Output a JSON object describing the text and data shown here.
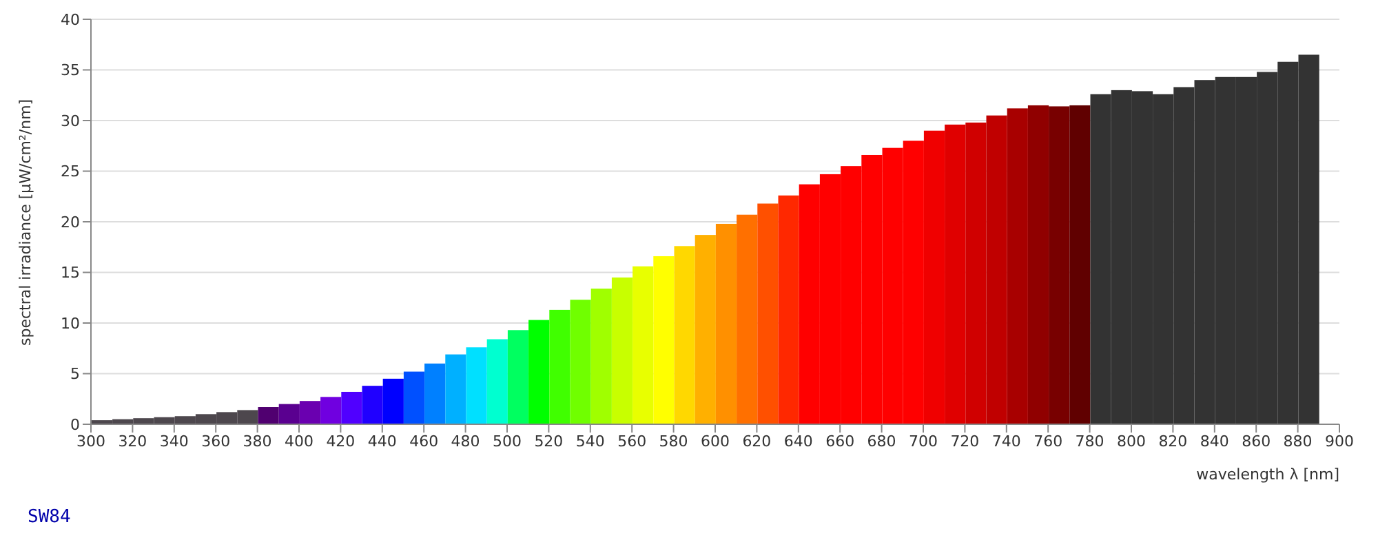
{
  "chart_data": {
    "type": "histogram",
    "title": "SW84",
    "xlabel": "wavelength λ [nm]",
    "ylabel": "spectral irradiance [µW/cm²/nm]",
    "bins": [
      300,
      310,
      320,
      330,
      340,
      350,
      360,
      370,
      380,
      390,
      400,
      410,
      420,
      430,
      440,
      450,
      460,
      470,
      480,
      490,
      500,
      510,
      520,
      530,
      540,
      550,
      560,
      570,
      580,
      590,
      600,
      610,
      620,
      630,
      640,
      650,
      660,
      670,
      680,
      690,
      700,
      710,
      720,
      730,
      740,
      750,
      760,
      770,
      780,
      790,
      800,
      810,
      820,
      830,
      840,
      850,
      860,
      870,
      880,
      890
    ],
    "values": [
      0.4,
      0.5,
      0.6,
      0.7,
      0.8,
      1.0,
      1.2,
      1.4,
      1.7,
      2.0,
      2.3,
      2.7,
      3.2,
      3.8,
      4.5,
      5.2,
      6.0,
      6.9,
      7.6,
      8.4,
      9.3,
      10.3,
      11.3,
      12.3,
      13.4,
      14.5,
      15.6,
      16.6,
      17.6,
      18.7,
      19.8,
      20.7,
      21.8,
      22.6,
      23.7,
      24.7,
      25.5,
      26.6,
      27.3,
      28.0,
      29.0,
      29.6,
      29.8,
      30.5,
      31.2,
      31.5,
      31.4,
      31.5,
      32.6,
      33.0,
      32.9,
      32.6,
      33.3,
      34.0,
      34.3,
      34.3,
      34.8,
      35.8,
      36.5
    ],
    "colors": [
      "#4d474d",
      "#4d474d",
      "#4d474d",
      "#4d474d",
      "#4d474d",
      "#4d474d",
      "#4d474d",
      "#4d474d",
      "#500070",
      "#5a0090",
      "#6a00b0",
      "#7000e0",
      "#5000ff",
      "#2000ff",
      "#0000ff",
      "#0050ff",
      "#0080ff",
      "#00b0ff",
      "#00e0ff",
      "#00ffd0",
      "#00ff60",
      "#00ff00",
      "#40ff00",
      "#70ff00",
      "#a0ff00",
      "#c8ff00",
      "#e8ff00",
      "#ffff00",
      "#ffd800",
      "#ffb000",
      "#ff9000",
      "#ff7000",
      "#ff5000",
      "#ff2800",
      "#ff0000",
      "#ff0000",
      "#ff0000",
      "#ff0000",
      "#ff0000",
      "#ff0000",
      "#f00000",
      "#e00000",
      "#d00000",
      "#c00000",
      "#a80000",
      "#900000",
      "#780000",
      "#600000",
      "#333333",
      "#333333",
      "#333333",
      "#333333",
      "#333333",
      "#333333",
      "#333333",
      "#333333",
      "#333333",
      "#333333",
      "#333333"
    ],
    "xlim": [
      300,
      900
    ],
    "xticks": [
      300,
      320,
      340,
      360,
      380,
      400,
      420,
      440,
      460,
      480,
      500,
      520,
      540,
      560,
      580,
      600,
      620,
      640,
      660,
      680,
      700,
      720,
      740,
      760,
      780,
      800,
      820,
      840,
      860,
      880,
      900
    ],
    "ylim": [
      0,
      40
    ],
    "yticks": [
      0,
      5,
      10,
      15,
      20,
      25,
      30,
      35,
      40
    ],
    "grid": "y"
  }
}
